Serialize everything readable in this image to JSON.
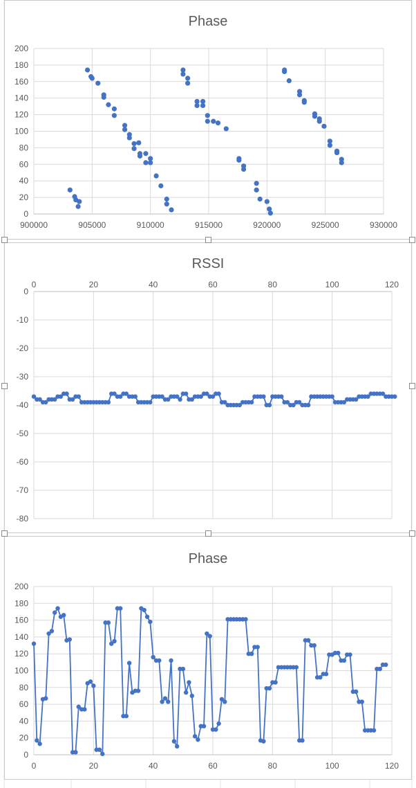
{
  "colors": {
    "series": "#4472c4",
    "grid": "#d9d9d9",
    "text": "#595959"
  },
  "chart_data": [
    {
      "type": "scatter",
      "title": "Phase",
      "xlim": [
        900000,
        930000
      ],
      "ylim": [
        0,
        200
      ],
      "xticks": [
        "900000",
        "905000",
        "910000",
        "915000",
        "920000",
        "925000",
        "930000"
      ],
      "yticks": [
        "0",
        "20",
        "40",
        "60",
        "80",
        "100",
        "120",
        "140",
        "160",
        "180",
        "200"
      ],
      "grid": true,
      "points": [
        [
          903100,
          29
        ],
        [
          903500,
          21
        ],
        [
          903600,
          17
        ],
        [
          903800,
          9
        ],
        [
          903900,
          15
        ],
        [
          904600,
          174
        ],
        [
          904900,
          166
        ],
        [
          905000,
          164
        ],
        [
          905500,
          158
        ],
        [
          906000,
          144
        ],
        [
          906000,
          141
        ],
        [
          906400,
          132
        ],
        [
          906900,
          127
        ],
        [
          906900,
          119
        ],
        [
          907800,
          107
        ],
        [
          907800,
          102
        ],
        [
          908200,
          96
        ],
        [
          908200,
          92
        ],
        [
          908600,
          85
        ],
        [
          908600,
          79
        ],
        [
          909000,
          86
        ],
        [
          909100,
          73
        ],
        [
          909100,
          70
        ],
        [
          909600,
          73
        ],
        [
          909600,
          62
        ],
        [
          910000,
          67
        ],
        [
          910000,
          62
        ],
        [
          910500,
          46
        ],
        [
          910900,
          34
        ],
        [
          911400,
          18
        ],
        [
          911400,
          12
        ],
        [
          911800,
          5
        ],
        [
          912800,
          174
        ],
        [
          912800,
          169
        ],
        [
          913200,
          164
        ],
        [
          913200,
          158
        ],
        [
          914000,
          136
        ],
        [
          914000,
          131
        ],
        [
          914500,
          136
        ],
        [
          914500,
          131
        ],
        [
          914900,
          119
        ],
        [
          914900,
          112
        ],
        [
          915400,
          112
        ],
        [
          915800,
          110
        ],
        [
          916500,
          103
        ],
        [
          917600,
          67
        ],
        [
          917600,
          65
        ],
        [
          918000,
          58
        ],
        [
          918000,
          54
        ],
        [
          919100,
          37
        ],
        [
          919100,
          29
        ],
        [
          919400,
          18
        ],
        [
          920000,
          15
        ],
        [
          920200,
          6
        ],
        [
          920300,
          1
        ],
        [
          921500,
          174
        ],
        [
          921500,
          172
        ],
        [
          921900,
          161
        ],
        [
          922800,
          148
        ],
        [
          922800,
          144
        ],
        [
          923200,
          137
        ],
        [
          923200,
          135
        ],
        [
          924100,
          121
        ],
        [
          924100,
          118
        ],
        [
          924500,
          115
        ],
        [
          924500,
          112
        ],
        [
          924900,
          106
        ],
        [
          925400,
          88
        ],
        [
          925400,
          83
        ],
        [
          926000,
          76
        ],
        [
          926000,
          74
        ],
        [
          926400,
          66
        ],
        [
          926400,
          62
        ]
      ]
    },
    {
      "type": "line",
      "title": "RSSI",
      "xlim": [
        0,
        120
      ],
      "ylim": [
        -80,
        0
      ],
      "xticks": [
        "0",
        "20",
        "40",
        "60",
        "80",
        "100",
        "120"
      ],
      "yticks": [
        "0",
        "-10",
        "-20",
        "-30",
        "-40",
        "-50",
        "-60",
        "-70",
        "-80"
      ],
      "grid": true,
      "values": [
        -37,
        -38,
        -38,
        -39,
        -39,
        -38,
        -38,
        -38,
        -37,
        -37,
        -36,
        -36,
        -38,
        -38,
        -37,
        -37,
        -39,
        -39,
        -39,
        -39,
        -39,
        -39,
        -39,
        -39,
        -39,
        -39,
        -36,
        -36,
        -37,
        -37,
        -36,
        -36,
        -37,
        -37,
        -37,
        -39,
        -39,
        -39,
        -39,
        -39,
        -37,
        -37,
        -37,
        -37,
        -38,
        -38,
        -37,
        -37,
        -37,
        -38,
        -36,
        -36,
        -38,
        -38,
        -37,
        -37,
        -37,
        -36,
        -36,
        -37,
        -37,
        -36,
        -36,
        -39,
        -39,
        -40,
        -40,
        -40,
        -40,
        -40,
        -39,
        -39,
        -39,
        -39,
        -37,
        -37,
        -37,
        -37,
        -40,
        -40,
        -37,
        -37,
        -37,
        -37,
        -39,
        -39,
        -40,
        -40,
        -39,
        -39,
        -40,
        -40,
        -40,
        -37,
        -37,
        -37,
        -37,
        -37,
        -37,
        -37,
        -37,
        -39,
        -39,
        -39,
        -39,
        -38,
        -38,
        -38,
        -38,
        -37,
        -37,
        -37,
        -37,
        -36,
        -36,
        -36,
        -36,
        -36,
        -37,
        -37,
        -37,
        -37
      ]
    },
    {
      "type": "line",
      "title": "Phase",
      "xlim": [
        0,
        120
      ],
      "ylim": [
        0,
        200
      ],
      "xticks": [
        "0",
        "20",
        "40",
        "60",
        "80",
        "100",
        "120"
      ],
      "yticks": [
        "0",
        "20",
        "40",
        "60",
        "80",
        "100",
        "120",
        "140",
        "160",
        "180",
        "200"
      ],
      "grid": true,
      "values": [
        132,
        17,
        13,
        66,
        67,
        144,
        147,
        169,
        174,
        164,
        166,
        136,
        137,
        3,
        3,
        57,
        54,
        54,
        85,
        87,
        82,
        6,
        6,
        1,
        157,
        157,
        132,
        135,
        174,
        174,
        46,
        46,
        109,
        74,
        76,
        76,
        174,
        172,
        164,
        158,
        116,
        112,
        112,
        63,
        67,
        63,
        112,
        16,
        10,
        102,
        102,
        74,
        86,
        70,
        22,
        18,
        34,
        34,
        144,
        141,
        30,
        30,
        37,
        66,
        63,
        161,
        161,
        161,
        161,
        161,
        161,
        161,
        120,
        120,
        128,
        128,
        17,
        16,
        79,
        79,
        86,
        86,
        104,
        104,
        104,
        104,
        104,
        104,
        104,
        17,
        17,
        136,
        136,
        130,
        130,
        92,
        92,
        96,
        96,
        119,
        119,
        121,
        121,
        112,
        112,
        119,
        119,
        75,
        75,
        63,
        63,
        29,
        29,
        29,
        29,
        102,
        102,
        107,
        107
      ]
    }
  ]
}
